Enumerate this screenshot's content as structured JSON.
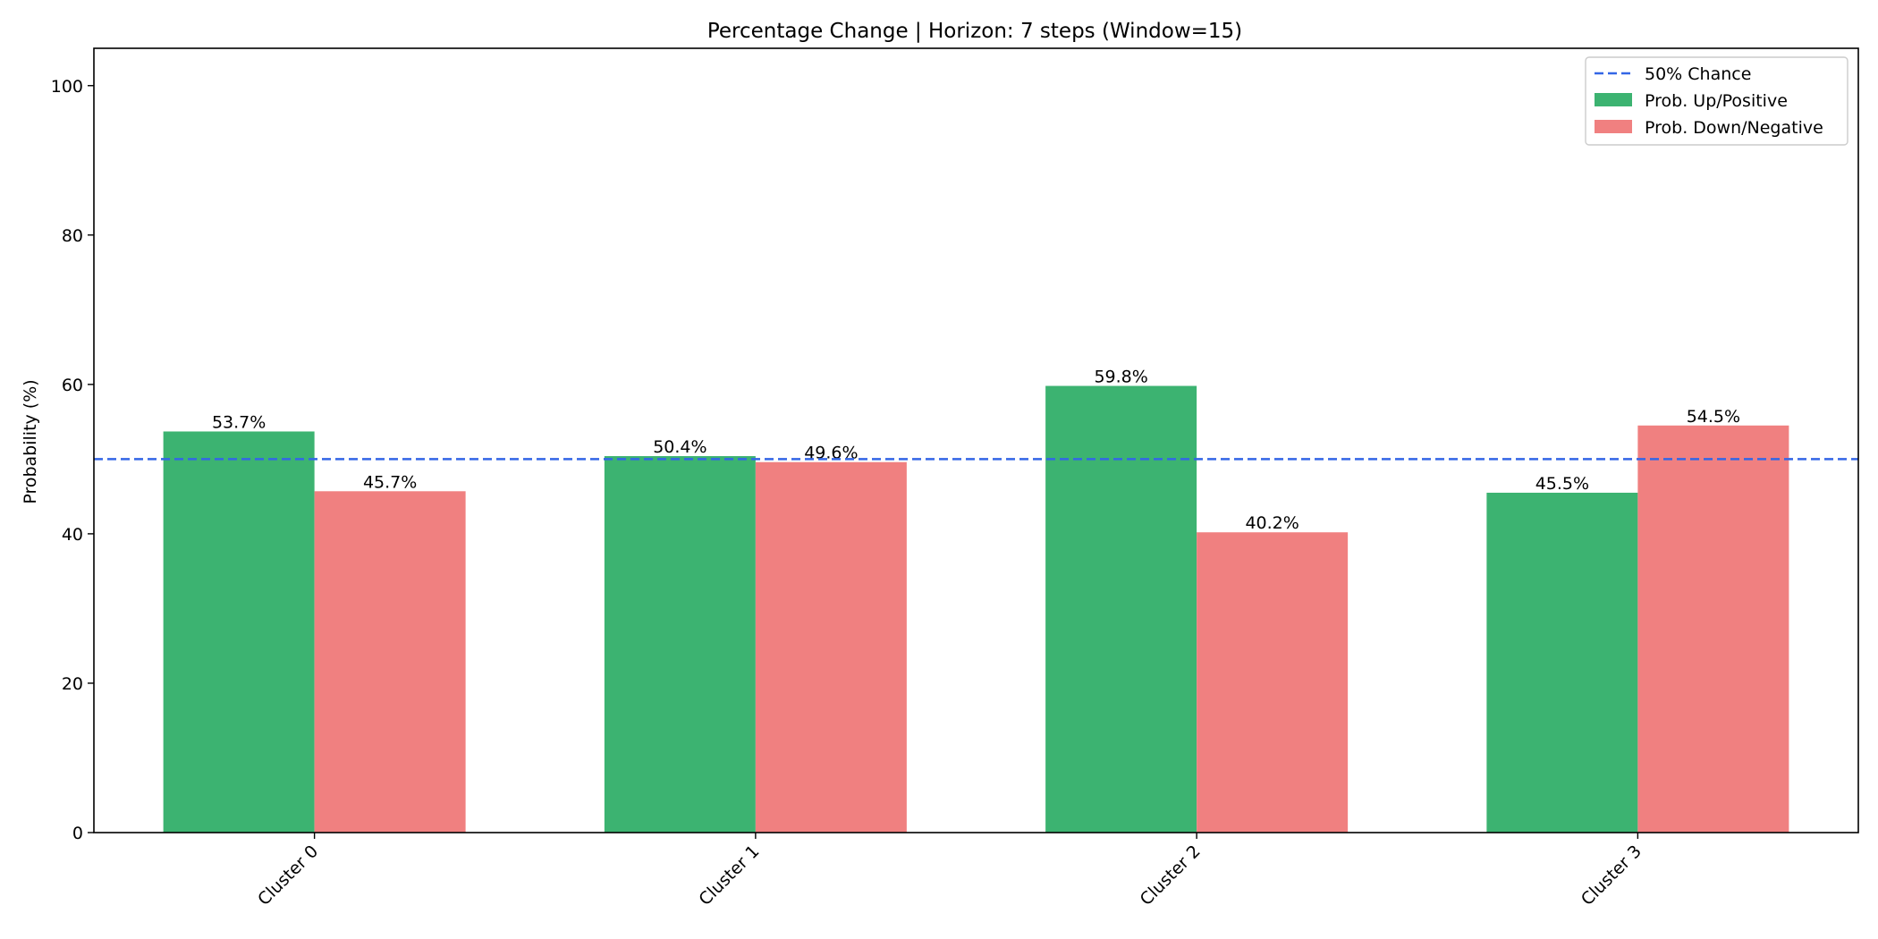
{
  "chart_data": {
    "type": "bar",
    "title": "Percentage Change | Horizon: 7 steps (Window=15)",
    "xlabel": "",
    "ylabel": "Probability (%)",
    "ylim": [
      0,
      105
    ],
    "yticks": [
      0,
      20,
      40,
      60,
      80,
      100
    ],
    "categories": [
      "Cluster 0",
      "Cluster 1",
      "Cluster 2",
      "Cluster 3"
    ],
    "series": [
      {
        "name": "Prob. Up/Positive",
        "color": "#3cb371",
        "values": [
          53.7,
          50.4,
          59.8,
          45.5
        ],
        "labels": [
          "53.7%",
          "50.4%",
          "59.8%",
          "45.5%"
        ]
      },
      {
        "name": "Prob. Down/Negative",
        "color": "#f08080",
        "values": [
          45.7,
          49.6,
          40.2,
          54.5
        ],
        "labels": [
          "45.7%",
          "49.6%",
          "40.2%",
          "54.5%"
        ]
      }
    ],
    "reference_line": {
      "name": "50% Chance",
      "y": 50,
      "color": "#3366e6",
      "style": "dashed"
    },
    "legend_position": "top-right",
    "grid": false
  }
}
